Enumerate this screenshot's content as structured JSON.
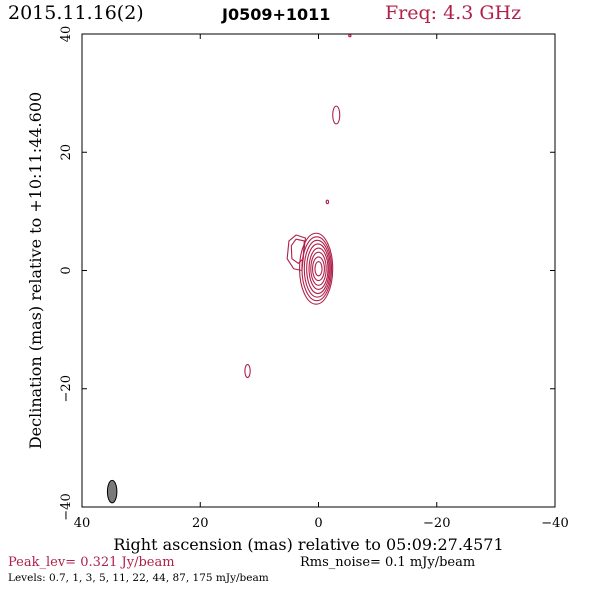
{
  "header": {
    "date": "2015.11.16(2)",
    "source": "J0509+1011",
    "freq": "Freq: 4.3 GHz"
  },
  "footer": {
    "peak": "Peak_lev=  0.321 Jy/beam",
    "noise": "Rms_noise=  0.1 mJy/beam",
    "levels": "Levels: 0.7,    1,    3,    5,   11,   22,   44,   87, 175 mJy/beam"
  },
  "colors": {
    "contour": "#b0204a",
    "beam": "#7a7a7a",
    "axis": "#000000"
  },
  "chart_data": {
    "type": "contour",
    "xlabel": "Right ascension (mas) relative to 05:09:27.4571",
    "ylabel": "Declination (mas) relative to +10:11:44.600",
    "xlim": [
      40,
      -40
    ],
    "ylim": [
      -40,
      40
    ],
    "xticks": [
      40,
      20,
      0,
      -20,
      -40
    ],
    "yticks": [
      -40,
      -20,
      0,
      20,
      40
    ],
    "xtick_labels": [
      "40",
      "20",
      "0",
      "−20",
      "−40"
    ],
    "ytick_labels": [
      "−40",
      "−20",
      "0",
      "20",
      "40"
    ],
    "levels_mJy_per_beam": [
      0.7,
      1,
      3,
      5,
      11,
      22,
      44,
      87,
      175
    ],
    "peak_Jy_per_beam": 0.321,
    "rms_noise_mJy_per_beam": 0.1,
    "core_contours": [
      {
        "x": 0.4,
        "y": 0.3,
        "rx": 2.8,
        "ry": 6.0
      },
      {
        "x": 0.3,
        "y": 0.3,
        "rx": 2.5,
        "ry": 5.4
      },
      {
        "x": 0.2,
        "y": 0.3,
        "rx": 2.2,
        "ry": 4.8
      },
      {
        "x": 0.1,
        "y": 0.3,
        "rx": 1.9,
        "ry": 4.2
      },
      {
        "x": 0.0,
        "y": 0.3,
        "rx": 1.6,
        "ry": 3.5
      },
      {
        "x": 0.0,
        "y": 0.3,
        "rx": 1.3,
        "ry": 2.8
      },
      {
        "x": 0.0,
        "y": 0.3,
        "rx": 1.0,
        "ry": 2.0
      },
      {
        "x": 0.0,
        "y": 0.3,
        "rx": 0.6,
        "ry": 1.2
      }
    ],
    "extension": {
      "points": [
        [
          2.2,
          5.5
        ],
        [
          3.8,
          6.0
        ],
        [
          5.0,
          5.0
        ],
        [
          5.3,
          2.0
        ],
        [
          4.2,
          0.3
        ],
        [
          2.8,
          0.0
        ],
        [
          2.5,
          3.0
        ]
      ]
    },
    "extension_inner": {
      "points": [
        [
          2.4,
          5.0
        ],
        [
          3.8,
          5.3
        ],
        [
          4.6,
          4.2
        ],
        [
          4.5,
          2.0
        ],
        [
          3.4,
          1.2
        ],
        [
          2.6,
          2.0
        ]
      ]
    },
    "isolated_blobs": [
      {
        "x": -3.0,
        "y": 26.3,
        "rx": 0.6,
        "ry": 1.5
      },
      {
        "x": -1.5,
        "y": 11.6,
        "rx": 0.2,
        "ry": 0.3
      },
      {
        "x": 12.0,
        "y": -17.0,
        "rx": 0.45,
        "ry": 1.1
      },
      {
        "x": -5.3,
        "y": 39.7,
        "rx": 0.2,
        "ry": 0.1
      }
    ],
    "beam": {
      "x": 34.9,
      "y": -37.4,
      "major": 3.8,
      "minor": 1.6
    }
  }
}
